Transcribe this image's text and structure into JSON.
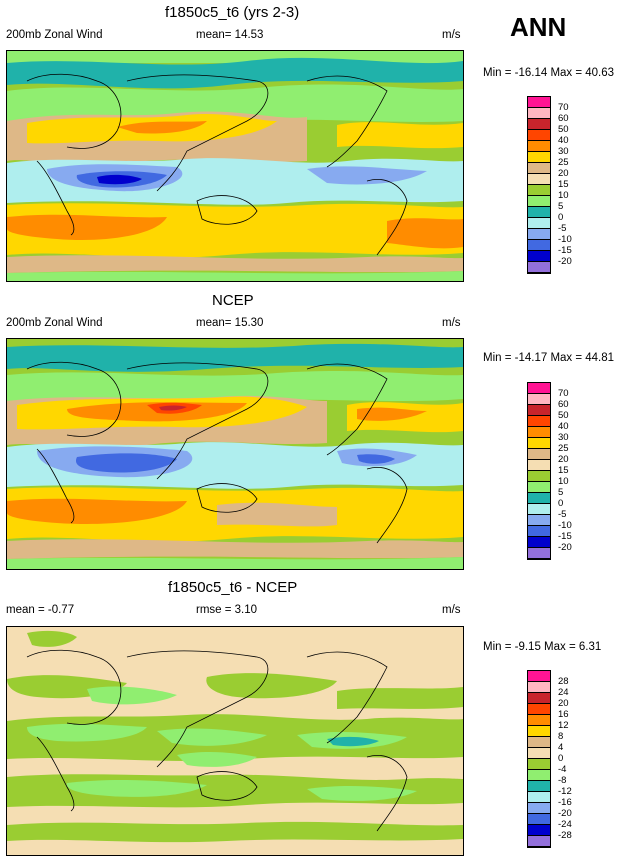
{
  "season": "ANN",
  "panels": [
    {
      "title": "f1850c5_t6 (yrs 2-3)",
      "left_label": "200mb Zonal Wind",
      "mid_label": "mean=  14.53",
      "units": "m/s",
      "minmax": "Min = -16.14 Max =  40.63",
      "levels": [
        "70",
        "60",
        "50",
        "40",
        "30",
        "25",
        "20",
        "15",
        "10",
        "5",
        "0",
        "-5",
        "-10",
        "-15",
        "-20"
      ]
    },
    {
      "title": "NCEP",
      "left_label": "200mb Zonal Wind",
      "mid_label": "mean=  15.30",
      "units": "m/s",
      "minmax": "Min = -14.17 Max =  44.81",
      "levels": [
        "70",
        "60",
        "50",
        "40",
        "30",
        "25",
        "20",
        "15",
        "10",
        "5",
        "0",
        "-5",
        "-10",
        "-15",
        "-20"
      ]
    },
    {
      "title": "f1850c5_t6 - NCEP",
      "left_label": "mean =  -0.77",
      "mid_label": "rmse =   3.10",
      "units": "m/s",
      "minmax": "Min =  -9.15 Max =   6.31",
      "levels": [
        "28",
        "24",
        "20",
        "16",
        "12",
        "8",
        "4",
        "0",
        "-4",
        "-8",
        "-12",
        "-16",
        "-20",
        "-24",
        "-28"
      ]
    }
  ],
  "colors": {
    "full_scale": [
      "#ff1493",
      "#ffb6c1",
      "#c8242c",
      "#ff4500",
      "#ff8c00",
      "#ffd700",
      "#deb887",
      "#f5deb3",
      "#9acd32",
      "#90ee70",
      "#20b2aa",
      "#afeeee",
      "#87aaf0",
      "#4169e1",
      "#0000cd",
      "#9370db"
    ],
    "diff_scale": [
      "#ff1493",
      "#ffb6c1",
      "#c8242c",
      "#ff4500",
      "#ff8c00",
      "#ffd700",
      "#deb887",
      "#f5deb3",
      "#9acd32",
      "#90ee70",
      "#20b2aa",
      "#afeeee",
      "#87aaf0",
      "#4169e1",
      "#0000cd",
      "#9370db"
    ]
  }
}
